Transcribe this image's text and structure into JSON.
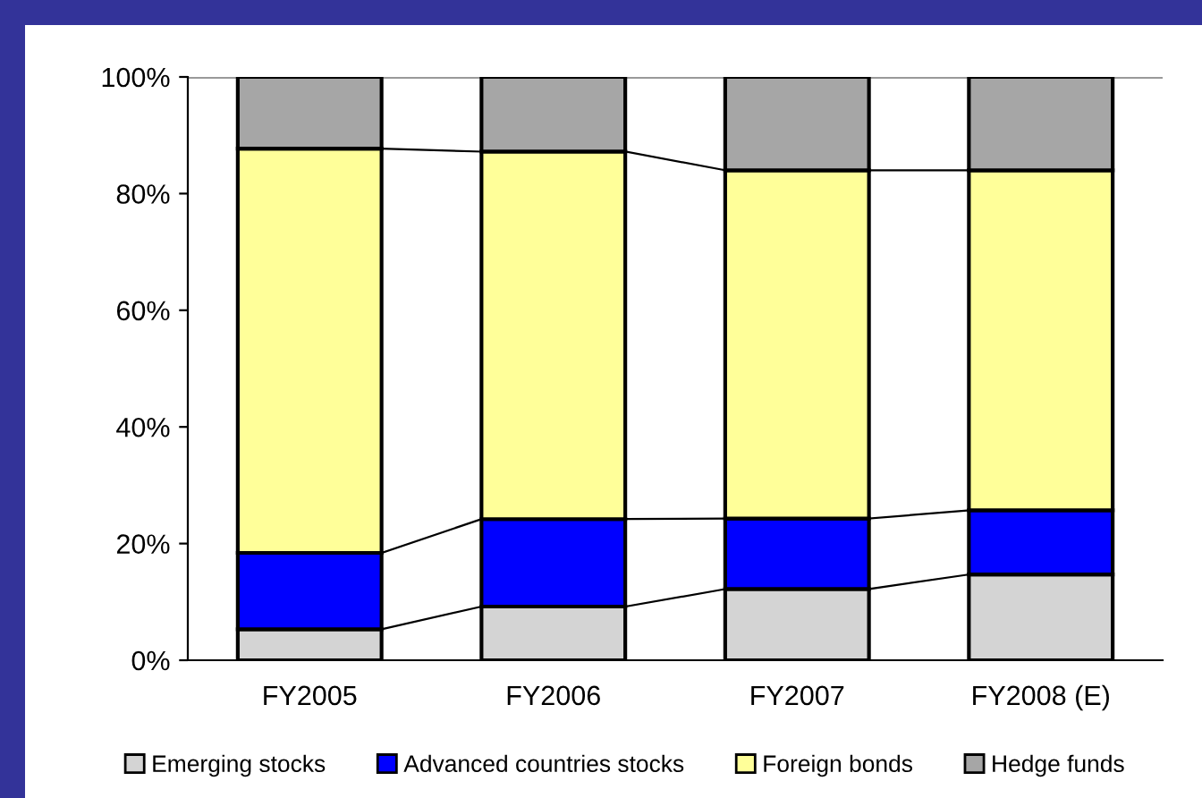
{
  "chart_data": {
    "type": "bar",
    "stacked": true,
    "categories": [
      "FY2005",
      "FY2006",
      "FY2007",
      "FY2008 (E)"
    ],
    "series": [
      {
        "name": "Emerging stocks",
        "color": "#d4d4d4",
        "values": [
          5.3,
          9.2,
          12.2,
          14.7
        ]
      },
      {
        "name": "Advanced countries stocks",
        "color": "#0000ff",
        "values": [
          13.1,
          15.0,
          12.1,
          11.0
        ]
      },
      {
        "name": "Foreign bonds",
        "color": "#ffff99",
        "values": [
          69.3,
          63.0,
          59.7,
          58.3
        ]
      },
      {
        "name": "Hedge funds",
        "color": "#a6a6a6",
        "values": [
          12.3,
          12.8,
          16.0,
          16.0
        ]
      }
    ],
    "ylim": [
      0,
      100
    ],
    "yticks": [
      {
        "value": 0,
        "label": "0%"
      },
      {
        "value": 20,
        "label": "20%"
      },
      {
        "value": 40,
        "label": "40%"
      },
      {
        "value": 60,
        "label": "60%"
      },
      {
        "value": 80,
        "label": "80%"
      },
      {
        "value": 100,
        "label": "100%"
      }
    ],
    "grid": false,
    "legend": "bottom"
  }
}
